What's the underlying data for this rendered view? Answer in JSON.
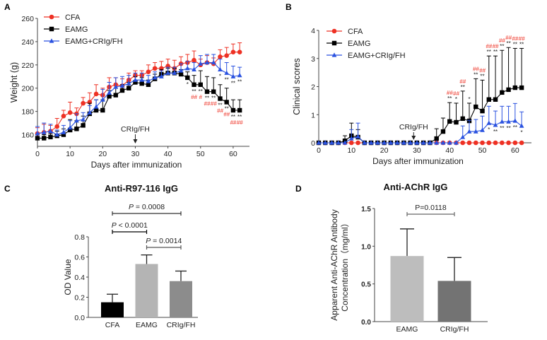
{
  "colors": {
    "cfa": "#ee3124",
    "eamg": "#000000",
    "treated": "#2a52e0",
    "sig_red": "#ee3124",
    "bar_cfa": "#000000",
    "bar_eamg": "#b4b4b4",
    "bar_crig": "#8c8c8c",
    "bar_d_eamg": "#bdbdbd",
    "bar_d_crig": "#737373"
  },
  "chart_data": [
    {
      "panel": "A",
      "type": "line",
      "title": "",
      "xlabel": "Days after immunization",
      "ylabel": "Weight (g)",
      "xlim": [
        0,
        65
      ],
      "ylim": [
        150,
        260
      ],
      "xticks": [
        0,
        10,
        20,
        30,
        40,
        50,
        60
      ],
      "yticks": [
        160,
        180,
        200,
        220,
        240,
        260
      ],
      "legend": "top-left",
      "annotation": {
        "text": "CRIg/FH",
        "x": 30
      },
      "x": [
        0,
        2,
        4,
        6,
        8,
        10,
        12,
        14,
        16,
        18,
        20,
        22,
        24,
        26,
        28,
        30,
        32,
        34,
        36,
        38,
        40,
        42,
        44,
        46,
        48,
        50,
        52,
        54,
        56,
        58,
        60,
        62
      ],
      "series": [
        {
          "name": "CFA",
          "marker": "circle",
          "color_key": "cfa",
          "values": [
            161,
            162,
            163,
            167,
            176,
            179,
            178,
            187,
            188,
            195,
            194,
            201,
            203,
            202,
            207,
            211,
            211,
            214,
            217,
            217,
            219,
            217,
            221,
            222,
            224,
            220,
            222,
            221,
            227,
            228,
            231,
            231
          ],
          "err": [
            5,
            7,
            5,
            7,
            5,
            9,
            5,
            5,
            8,
            8,
            6,
            8,
            6,
            6,
            6,
            4,
            4,
            6,
            5,
            6,
            6,
            7,
            6,
            7,
            8,
            5,
            6,
            5,
            6,
            7,
            7,
            8
          ]
        },
        {
          "name": "EAMG",
          "marker": "square",
          "color_key": "eamg",
          "values": [
            157,
            157,
            158,
            159,
            160,
            164,
            165,
            168,
            178,
            181,
            181,
            193,
            194,
            198,
            200,
            205,
            204,
            203,
            208,
            212,
            213,
            213,
            212,
            209,
            203,
            203,
            197,
            197,
            191,
            188,
            181,
            181
          ],
          "err": [
            3,
            3,
            3,
            4,
            5,
            9,
            7,
            8,
            9,
            9,
            9,
            5,
            6,
            5,
            5,
            5,
            5,
            4,
            4,
            4,
            4,
            4,
            4,
            5,
            8,
            12,
            13,
            12,
            12,
            12,
            9,
            9
          ]
        },
        {
          "name": "EAMG+CRIg/FH",
          "marker": "triangle",
          "color_key": "treated",
          "values": [
            161,
            162,
            163,
            160,
            162,
            166,
            172,
            173,
            179,
            184,
            190,
            196,
            201,
            202,
            204,
            207,
            207,
            206,
            209,
            210,
            213,
            213,
            215,
            217,
            216,
            221,
            222,
            222,
            216,
            213,
            210,
            211
          ],
          "err": [
            6,
            8,
            6,
            4,
            6,
            6,
            6,
            6,
            6,
            6,
            9,
            9,
            8,
            8,
            7,
            6,
            6,
            5,
            5,
            5,
            5,
            5,
            6,
            6,
            6,
            7,
            7,
            7,
            9,
            9,
            9,
            7
          ]
        }
      ],
      "significance": [
        {
          "x": 46,
          "black": "*",
          "red": ""
        },
        {
          "x": 48,
          "black": "**",
          "red": "##"
        },
        {
          "x": 50,
          "black": "**",
          "red": "#"
        },
        {
          "x": 52,
          "black": "**",
          "red": "##"
        },
        {
          "x": 54,
          "black": "**",
          "red": "##"
        },
        {
          "x": 56,
          "black": "**",
          "red": "##"
        },
        {
          "x": 58,
          "black": "**",
          "red": "##"
        },
        {
          "x": 60,
          "black": "**",
          "red": "##"
        },
        {
          "x": 62,
          "black": "**",
          "red": "##"
        }
      ],
      "significance_treated": [
        {
          "x": 56,
          "text": "*"
        },
        {
          "x": 58,
          "text": "**"
        },
        {
          "x": 60,
          "text": "**"
        },
        {
          "x": 62,
          "text": "**"
        }
      ]
    },
    {
      "panel": "B",
      "type": "line",
      "title": "",
      "xlabel": "Days after immunization",
      "ylabel": "Clinical scores",
      "xlim": [
        0,
        65
      ],
      "ylim": [
        0,
        4
      ],
      "xticks": [
        0,
        10,
        20,
        30,
        40,
        50,
        60
      ],
      "yticks": [
        0,
        1,
        2,
        3,
        4
      ],
      "legend": "top-left",
      "annotation": {
        "text": "CRIg/FH",
        "x": 29
      },
      "x": [
        0,
        2,
        4,
        6,
        8,
        10,
        12,
        14,
        16,
        18,
        20,
        22,
        24,
        26,
        28,
        30,
        32,
        34,
        36,
        38,
        40,
        42,
        44,
        46,
        48,
        50,
        52,
        54,
        56,
        58,
        60,
        62
      ],
      "series": [
        {
          "name": "CFA",
          "marker": "circle",
          "color_key": "cfa",
          "values": [
            0,
            0,
            0,
            0,
            0,
            0,
            0,
            0,
            0,
            0,
            0,
            0,
            0,
            0,
            0,
            0,
            0,
            0,
            0,
            0,
            0,
            0,
            0,
            0,
            0,
            0,
            0,
            0,
            0,
            0,
            0,
            0
          ],
          "err": [
            0,
            0,
            0,
            0,
            0,
            0,
            0,
            0,
            0,
            0,
            0,
            0,
            0,
            0,
            0,
            0,
            0,
            0,
            0,
            0,
            0,
            0,
            0,
            0,
            0,
            0,
            0,
            0,
            0,
            0,
            0,
            0
          ]
        },
        {
          "name": "EAMG",
          "marker": "square",
          "color_key": "eamg",
          "values": [
            0,
            0,
            0,
            0,
            0.07,
            0.25,
            0.2,
            0,
            0,
            0,
            0,
            0,
            0,
            0,
            0,
            0,
            0,
            0,
            0.15,
            0.4,
            0.76,
            0.73,
            0.86,
            0.78,
            1.28,
            1.13,
            1.54,
            1.54,
            1.79,
            1.89,
            1.96,
            1.96
          ],
          "err": [
            0,
            0,
            0,
            0,
            0.18,
            0.45,
            0.27,
            0,
            0,
            0,
            0,
            0,
            0,
            0,
            0,
            0,
            0,
            0,
            0.35,
            0.48,
            0.67,
            0.68,
            0.98,
            0.63,
            1.0,
            1.1,
            1.55,
            1.55,
            1.5,
            1.5,
            1.4,
            1.4
          ]
        },
        {
          "name": "EAMG+CRIg/FH",
          "marker": "triangle",
          "color_key": "treated",
          "values": [
            0,
            0,
            0,
            0,
            0,
            0.15,
            0.22,
            0,
            0,
            0,
            0,
            0,
            0,
            0,
            0,
            0,
            0,
            0,
            0,
            0,
            0,
            0,
            0.2,
            0.4,
            0.4,
            0.45,
            0.7,
            0.63,
            0.75,
            0.75,
            0.78,
            0.6
          ],
          "err": [
            0,
            0,
            0,
            0,
            0,
            0.32,
            0.48,
            0,
            0,
            0,
            0,
            0,
            0,
            0,
            0,
            0,
            0,
            0,
            0,
            0,
            0,
            0,
            0.4,
            0.4,
            0.43,
            0.5,
            0.6,
            0.5,
            0.55,
            0.55,
            0.62,
            0.5
          ]
        }
      ],
      "significance": [
        {
          "x": 40,
          "black": "**",
          "red": "##"
        },
        {
          "x": 42,
          "black": "*",
          "red": "##"
        },
        {
          "x": 44,
          "black": "**",
          "red": "##"
        },
        {
          "x": 46,
          "black": "*",
          "red": ""
        },
        {
          "x": 48,
          "black": "**",
          "red": "##"
        },
        {
          "x": 50,
          "black": "**",
          "red": "##"
        },
        {
          "x": 52,
          "black": "**",
          "red": "##"
        },
        {
          "x": 54,
          "black": "**",
          "red": "##"
        },
        {
          "x": 56,
          "black": "**",
          "red": "##"
        },
        {
          "x": 58,
          "black": "**",
          "red": "##"
        },
        {
          "x": 60,
          "black": "**",
          "red": "##"
        },
        {
          "x": 62,
          "black": "**",
          "red": "##"
        }
      ],
      "significance_treated": [
        {
          "x": 52,
          "text": "*"
        },
        {
          "x": 54,
          "text": "**"
        },
        {
          "x": 56,
          "text": "**"
        },
        {
          "x": 58,
          "text": "**"
        },
        {
          "x": 60,
          "text": "**"
        },
        {
          "x": 62,
          "text": "*"
        }
      ]
    },
    {
      "panel": "C",
      "type": "bar",
      "title": "Anti-R97-116 IgG",
      "xlabel": "",
      "ylabel": "OD Value",
      "ylim": [
        0,
        0.8
      ],
      "yticks": [
        "0.0",
        "0.2",
        "0.4",
        "0.6",
        "0.8"
      ],
      "categories": [
        "CFA",
        "EAMG",
        "CRIg/FH"
      ],
      "values": [
        0.15,
        0.53,
        0.36
      ],
      "err": [
        0.08,
        0.09,
        0.1
      ],
      "bar_color_keys": [
        "bar_cfa",
        "bar_eamg",
        "bar_crig"
      ],
      "comparisons": [
        {
          "from": 0,
          "to": 2,
          "label_italic": "P",
          "label_rest": " = 0.0008",
          "level": 2,
          "color": "#333333"
        },
        {
          "from": 0,
          "to": 1,
          "label_italic": "P",
          "label_rest": " < 0.0001",
          "level": 1,
          "color": "#000000"
        },
        {
          "from": 1,
          "to": 2,
          "label_italic": "P",
          "label_rest": " = 0.0014",
          "level": 0,
          "color": "#555555"
        }
      ]
    },
    {
      "panel": "D",
      "type": "bar",
      "title": "Anti-AChR IgG",
      "xlabel": "",
      "ylabel_line1": "Apparent Anti-AChR Antibody",
      "ylabel_line2": "Concentration（mg/ml）",
      "ylim": [
        0,
        1.5
      ],
      "yticks": [
        "0.0",
        "0.5",
        "1.0",
        "1.5"
      ],
      "categories": [
        "EAMG",
        "CRIg/FH"
      ],
      "values": [
        0.87,
        0.54
      ],
      "err": [
        0.36,
        0.31
      ],
      "bar_color_keys": [
        "bar_d_eamg",
        "bar_d_crig"
      ],
      "comparisons": [
        {
          "from": 0,
          "to": 1,
          "label_italic": "",
          "label_rest": "P=0.0118",
          "level": 0,
          "color": "#666666"
        }
      ]
    }
  ],
  "panel_labels": [
    "A",
    "B",
    "C",
    "D"
  ]
}
